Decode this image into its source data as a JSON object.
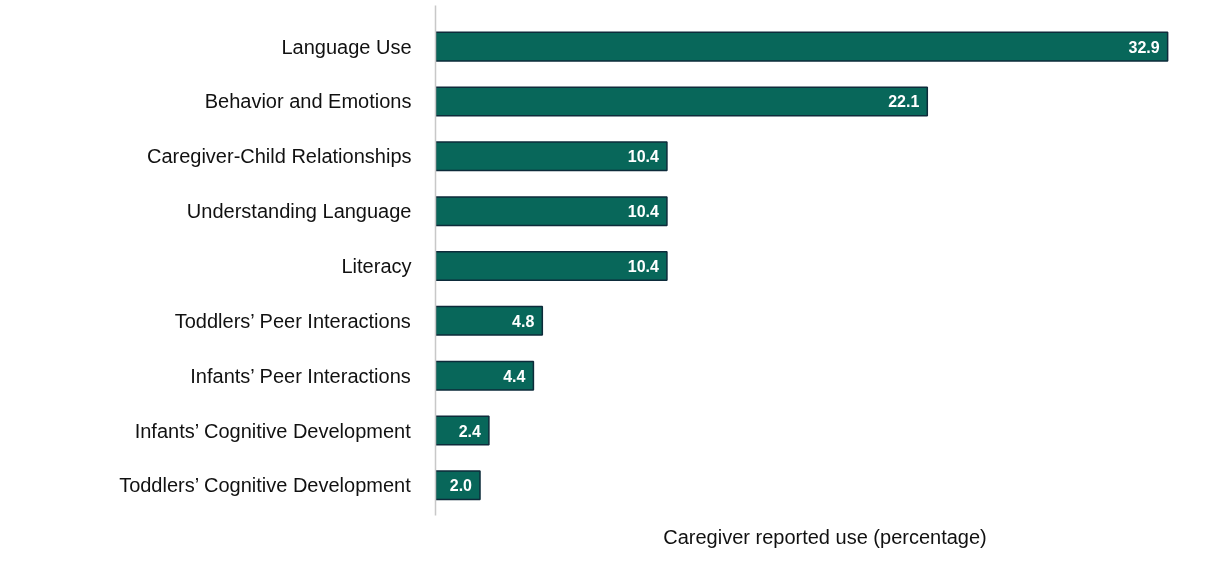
{
  "chart_data": {
    "type": "bar",
    "orientation": "horizontal",
    "xlabel": "Caregiver reported use (percentage)",
    "categories": [
      "Language Use",
      "Behavior and Emotions",
      "Caregiver-Child Relationships",
      "Understanding Language",
      "Literacy",
      "Toddlers’ Peer Interactions",
      "Infants’ Peer Interactions",
      "Infants’ Cognitive Development",
      "Toddlers’ Cognitive Development"
    ],
    "values": [
      32.9,
      22.1,
      10.4,
      10.4,
      10.4,
      4.8,
      4.4,
      2.4,
      2.0
    ],
    "value_labels": [
      "32.9",
      "22.1",
      "10.4",
      "10.4",
      "10.4",
      "4.8",
      "4.4",
      "2.4",
      "2.0"
    ],
    "color": "#08675a",
    "grid": false
  }
}
